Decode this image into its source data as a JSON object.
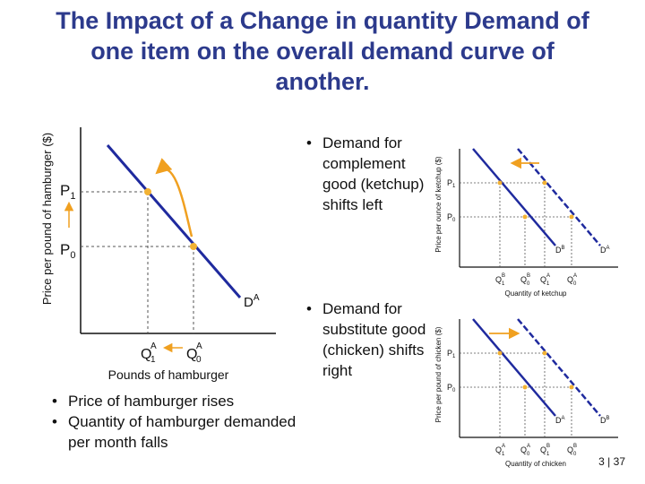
{
  "title": {
    "line1": "The Impact of a Change in quantity Demand of",
    "line2": "one item on the overall demand curve of",
    "line3": "another."
  },
  "left_diagram": {
    "y_axis_label": "Price per pound of hamburger ($)",
    "x_axis_label": "Pounds of hamburger",
    "price_high": "P",
    "price_high_sub": "1",
    "price_low": "P",
    "price_low_sub": "0",
    "qty_low": "Q",
    "qty_low_sup": "A",
    "qty_low_sub": "1",
    "qty_high": "Q",
    "qty_high_sup": "A",
    "qty_high_sub": "0",
    "curve_label": "D",
    "curve_label_sup": "A"
  },
  "left_bullets": [
    "Price of hamburger rises",
    "Quantity of hamburger demanded per month falls"
  ],
  "complement_bullet": "Demand for complement good (ketchup) shifts left",
  "substitute_bullet": "Demand for substitute good (chicken) shifts right",
  "ketchup_diagram": {
    "y_axis_label": "Price per ounce of ketchup ($)",
    "x_axis_label": "Quantity of ketchup",
    "p1": "P",
    "p1_sub": "1",
    "p0": "P",
    "p0_sub": "0",
    "q_labels": [
      {
        "base": "Q",
        "sup": "B",
        "sub": "1"
      },
      {
        "base": "Q",
        "sup": "B",
        "sub": "0"
      },
      {
        "base": "Q",
        "sup": "A",
        "sub": "1"
      },
      {
        "base": "Q",
        "sup": "A",
        "sub": "0"
      }
    ],
    "curve_new": "D",
    "curve_new_sup": "B",
    "curve_old": "D",
    "curve_old_sup": "A"
  },
  "chicken_diagram": {
    "y_axis_label": "Price per pound of chicken ($)",
    "x_axis_label": "Quantity of chicken",
    "p1": "P",
    "p1_sub": "1",
    "p0": "P",
    "p0_sub": "0",
    "q_labels": [
      {
        "base": "Q",
        "sup": "A",
        "sub": "1"
      },
      {
        "base": "Q",
        "sup": "A",
        "sub": "0"
      },
      {
        "base": "Q",
        "sup": "B",
        "sub": "1"
      },
      {
        "base": "Q",
        "sup": "B",
        "sub": "0"
      }
    ],
    "curve_old": "D",
    "curve_old_sup": "A",
    "curve_new": "D",
    "curve_new_sup": "B"
  },
  "footer": {
    "page": "3",
    "separator": "|",
    "total": "37"
  },
  "colors": {
    "title": "#2c3a8c",
    "curve": "#1f2a9e",
    "arrow": "#f0a020",
    "point": "#f2b233"
  }
}
